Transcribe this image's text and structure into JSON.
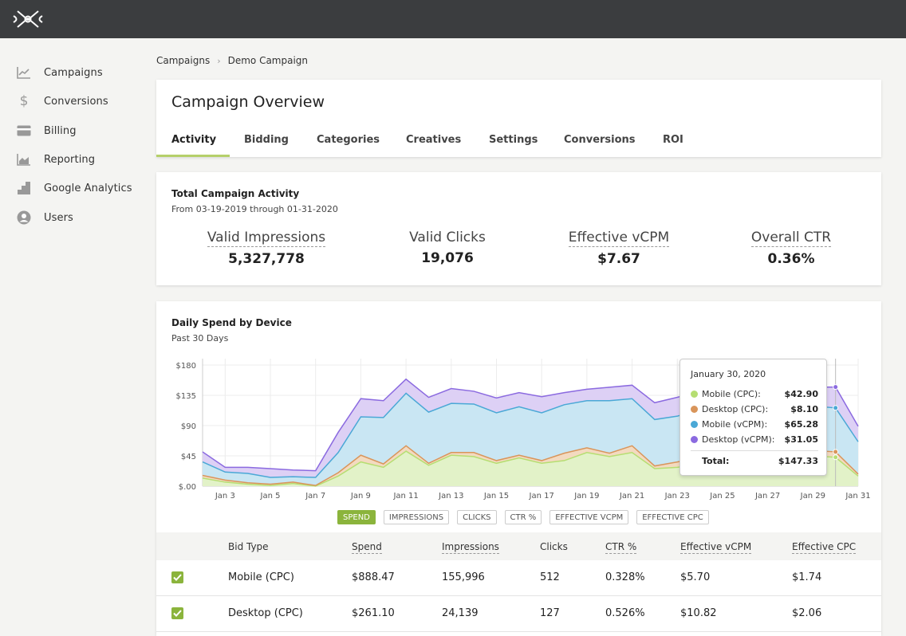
{
  "header": {
    "logo": "logo-icon"
  },
  "sidebar": {
    "items": [
      {
        "label": "Campaigns",
        "icon": "line-chart-icon"
      },
      {
        "label": "Conversions",
        "icon": "dollar-icon"
      },
      {
        "label": "Billing",
        "icon": "credit-card-icon"
      },
      {
        "label": "Reporting",
        "icon": "area-chart-icon"
      },
      {
        "label": "Google Analytics",
        "icon": "bar-steps-icon"
      },
      {
        "label": "Users",
        "icon": "user-icon"
      }
    ]
  },
  "breadcrumb": {
    "parent": "Campaigns",
    "separator": "›",
    "current": "Demo Campaign"
  },
  "overview": {
    "title": "Campaign Overview",
    "tabs": [
      "Activity",
      "Bidding",
      "Categories",
      "Creatives",
      "Settings",
      "Conversions",
      "ROI"
    ],
    "active_tab": "Activity"
  },
  "activity": {
    "title": "Total Campaign Activity",
    "subtitle": "From 03-19-2019 through 01-31-2020",
    "stats": [
      {
        "label": "Valid Impressions",
        "value": "5,327,778"
      },
      {
        "label": "Valid Clicks",
        "value": "19,076"
      },
      {
        "label": "Effective vCPM",
        "value": "$7.67"
      },
      {
        "label": "Overall CTR",
        "value": "0.36%"
      }
    ]
  },
  "spend": {
    "title": "Daily Spend by Device",
    "subtitle": "Past 30 Days",
    "toggles": [
      "SPEND",
      "IMPRESSIONS",
      "CLICKS",
      "CTR %",
      "EFFECTIVE VCPM",
      "EFFECTIVE CPC"
    ],
    "active_toggle": "SPEND",
    "tooltip": {
      "date": "January 30, 2020",
      "rows": [
        {
          "name": "Mobile (CPC):",
          "value": "$42.90"
        },
        {
          "name": "Desktop (CPC):",
          "value": "$8.10"
        },
        {
          "name": "Mobile (vCPM):",
          "value": "$65.28"
        },
        {
          "name": "Desktop (vCPM):",
          "value": "$31.05"
        }
      ],
      "total_label": "Total:",
      "total_value": "$147.33"
    }
  },
  "colors": {
    "mobile_cpc": "#b6de72",
    "desktop_cpc": "#d9955a",
    "mobile_vcpm": "#4aa8d6",
    "desktop_vcpm": "#8b6ae0",
    "accent": "#8bb43c"
  },
  "chart_data": {
    "type": "area",
    "stacked": true,
    "x": [
      "Jan 2",
      "Jan 3",
      "Jan 4",
      "Jan 5",
      "Jan 6",
      "Jan 7",
      "Jan 8",
      "Jan 9",
      "Jan 10",
      "Jan 11",
      "Jan 12",
      "Jan 13",
      "Jan 14",
      "Jan 15",
      "Jan 16",
      "Jan 17",
      "Jan 18",
      "Jan 19",
      "Jan 20",
      "Jan 21",
      "Jan 22",
      "Jan 23",
      "Jan 24",
      "Jan 25",
      "Jan 26",
      "Jan 27",
      "Jan 28",
      "Jan 29",
      "Jan 30",
      "Jan 31"
    ],
    "x_tick_labels": [
      "Jan 3",
      "Jan 5",
      "Jan 7",
      "Jan 9",
      "Jan 11",
      "Jan 13",
      "Jan 15",
      "Jan 17",
      "Jan 19",
      "Jan 21",
      "Jan 23",
      "Jan 25",
      "Jan 27",
      "Jan 29",
      "Jan 31"
    ],
    "y_tick_labels": [
      "$.00",
      "$45",
      "$90",
      "$135",
      "$180"
    ],
    "ylim": [
      0,
      180
    ],
    "grid": true,
    "series": [
      {
        "name": "Mobile (CPC)",
        "values": [
          12,
          6,
          3,
          1,
          4,
          0,
          15,
          36,
          28,
          52,
          31,
          46,
          44,
          34,
          42,
          34,
          38,
          50,
          44,
          50,
          26,
          28,
          33,
          36,
          38,
          37,
          40,
          45,
          42.9,
          15
        ]
      },
      {
        "name": "Desktop (CPC)",
        "values": [
          4,
          3,
          2,
          2,
          2,
          1,
          5,
          10,
          5,
          8,
          3,
          4,
          6,
          4,
          4,
          4,
          11,
          7,
          5,
          10,
          4,
          8,
          10,
          8,
          8,
          8,
          8,
          8,
          8.1,
          3
        ]
      },
      {
        "name": "Mobile (vCPM)",
        "values": [
          20,
          12,
          14,
          10,
          8,
          12,
          30,
          57,
          69,
          78,
          76,
          73,
          72,
          71,
          72,
          71,
          72,
          70,
          78,
          70,
          69,
          68,
          71,
          72,
          69,
          72,
          70,
          66,
          65.28,
          48
        ]
      },
      {
        "name": "Desktop (vCPM)",
        "values": [
          15,
          7,
          9,
          13,
          10,
          10,
          30,
          27,
          25,
          21,
          22,
          22,
          19,
          22,
          21,
          24,
          18,
          17,
          20,
          20,
          25,
          28,
          27,
          28,
          26,
          28,
          28,
          28,
          31.05,
          23
        ]
      }
    ]
  },
  "table": {
    "headers": [
      "Bid Type",
      "Spend",
      "Impressions",
      "Clicks",
      "CTR %",
      "Effective vCPM",
      "Effective CPC"
    ],
    "rows": [
      [
        "Mobile (CPC)",
        "$888.47",
        "155,996",
        "512",
        "0.328%",
        "$5.70",
        "$1.74"
      ],
      [
        "Desktop (CPC)",
        "$261.10",
        "24,139",
        "127",
        "0.526%",
        "$10.82",
        "$2.06"
      ]
    ]
  }
}
